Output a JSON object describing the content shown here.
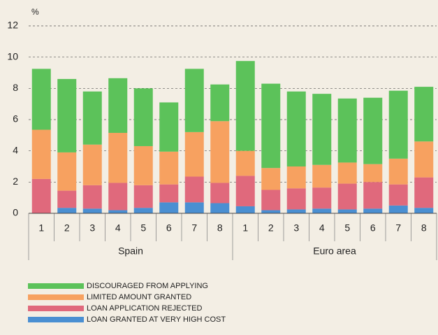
{
  "chart_data": {
    "type": "stacked_bar",
    "y_label": "%",
    "groups": [
      {
        "name": "Spain",
        "categories": [
          "1",
          "2",
          "3",
          "4",
          "5",
          "6",
          "7",
          "8"
        ]
      },
      {
        "name": "Euro area",
        "categories": [
          "1",
          "2",
          "3",
          "4",
          "5",
          "6",
          "7",
          "8"
        ]
      }
    ],
    "series": [
      {
        "name": "LOAN GRANTED AT VERY HIGH COST",
        "color": "#4a8fd2",
        "values": [
          0,
          0.35,
          0.3,
          0.2,
          0.35,
          0.7,
          0.7,
          0.65,
          0.45,
          0.2,
          0.25,
          0.3,
          0.25,
          0.3,
          0.5,
          0.35
        ]
      },
      {
        "name": "LOAN APPLICATION REJECTED",
        "color": "#e0697c",
        "values": [
          2.2,
          1.1,
          1.5,
          1.75,
          1.45,
          1.15,
          1.65,
          1.3,
          1.95,
          1.3,
          1.35,
          1.35,
          1.65,
          1.7,
          1.35,
          1.95
        ]
      },
      {
        "name": "LIMITED AMOUNT GRANTED",
        "color": "#f7a160",
        "values": [
          3.15,
          2.45,
          2.6,
          3.2,
          2.5,
          2.1,
          2.85,
          3.95,
          1.6,
          1.4,
          1.4,
          1.45,
          1.35,
          1.15,
          1.65,
          2.3
        ]
      },
      {
        "name": "DISCOURAGED FROM APPLYING",
        "color": "#5cc25a",
        "values": [
          3.9,
          4.7,
          3.4,
          3.5,
          3.7,
          3.15,
          4.05,
          2.35,
          5.75,
          5.4,
          4.8,
          4.55,
          4.1,
          4.25,
          4.35,
          3.5
        ]
      }
    ],
    "ylim": [
      0,
      12
    ],
    "yticks": [
      0,
      2,
      4,
      6,
      8,
      10,
      12
    ],
    "grid": true
  }
}
